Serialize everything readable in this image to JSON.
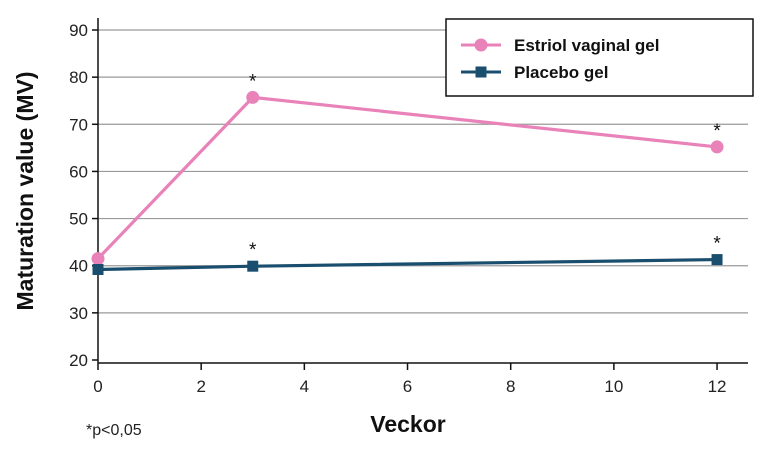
{
  "chart_data": {
    "type": "line",
    "xlabel": "Veckor",
    "ylabel": "Maturation value (MV)",
    "xlim": [
      0,
      12.6
    ],
    "ylim": [
      20,
      90
    ],
    "xticks": [
      "0",
      "2",
      "4",
      "6",
      "8",
      "10",
      "12"
    ],
    "yticks": [
      "20",
      "30",
      "40",
      "50",
      "60",
      "70",
      "80",
      "90"
    ],
    "grid": "horizontal",
    "legend_position": "top-right",
    "footnote": "*p<0,05",
    "series": [
      {
        "name": "Estriol vaginal gel",
        "color": "#e882b8",
        "marker": "circle",
        "x": [
          0,
          3,
          12
        ],
        "y": [
          41.5,
          75.7,
          65.2
        ],
        "significance": [
          "",
          "*",
          "*"
        ]
      },
      {
        "name": "Placebo gel",
        "color": "#1a4e6e",
        "marker": "square",
        "x": [
          0,
          3,
          12
        ],
        "y": [
          39.2,
          39.9,
          41.3
        ],
        "significance": [
          "",
          "*",
          "*"
        ]
      }
    ]
  }
}
